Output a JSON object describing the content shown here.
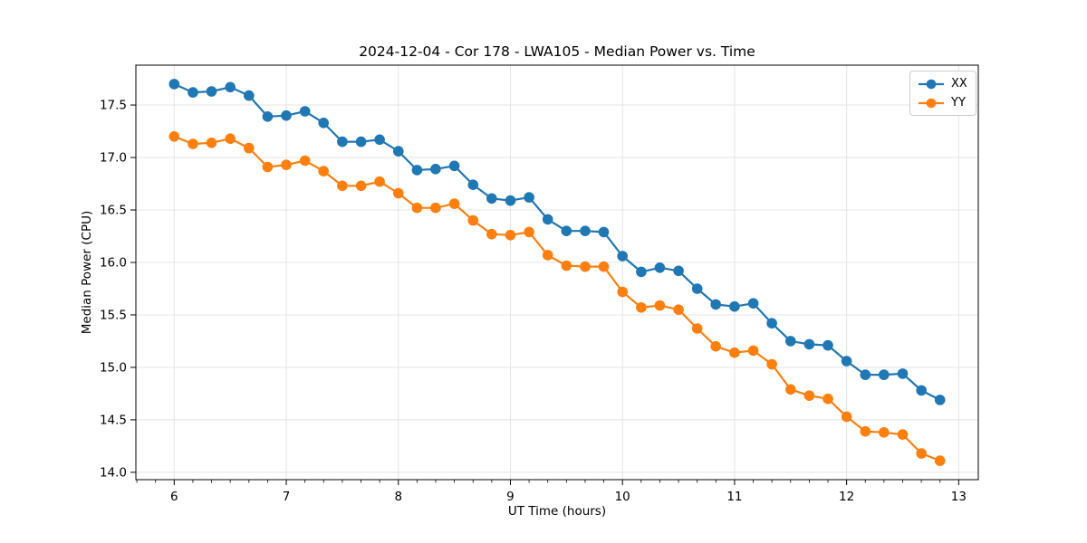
{
  "chart_data": {
    "type": "line",
    "title": "2024-12-04 - Cor 178 - LWA105 - Median Power vs. Time",
    "xlabel": "UT Time (hours)",
    "ylabel": "Median Power (CPU)",
    "x": [
      6.0,
      6.167,
      6.333,
      6.5,
      6.667,
      6.833,
      7.0,
      7.167,
      7.333,
      7.5,
      7.667,
      7.833,
      8.0,
      8.167,
      8.333,
      8.5,
      8.667,
      8.833,
      9.0,
      9.167,
      9.333,
      9.5,
      9.667,
      9.833,
      10.0,
      10.167,
      10.333,
      10.5,
      10.667,
      10.833,
      11.0,
      11.167,
      11.333,
      11.5,
      11.667,
      11.833,
      12.0,
      12.167,
      12.333,
      12.5,
      12.667,
      12.833
    ],
    "series": [
      {
        "name": "XX",
        "color": "#1f77b4",
        "values": [
          17.7,
          17.62,
          17.63,
          17.67,
          17.59,
          17.39,
          17.4,
          17.44,
          17.33,
          17.15,
          17.15,
          17.17,
          17.06,
          16.88,
          16.89,
          16.92,
          16.74,
          16.61,
          16.59,
          16.62,
          16.41,
          16.3,
          16.3,
          16.29,
          16.06,
          15.91,
          15.95,
          15.92,
          15.75,
          15.6,
          15.58,
          15.61,
          15.42,
          15.25,
          15.22,
          15.21,
          15.06,
          14.93,
          14.93,
          14.94,
          14.78,
          14.69
        ]
      },
      {
        "name": "YY",
        "color": "#ff7f0e",
        "values": [
          17.2,
          17.13,
          17.14,
          17.18,
          17.09,
          16.91,
          16.93,
          16.97,
          16.87,
          16.73,
          16.73,
          16.77,
          16.66,
          16.52,
          16.52,
          16.56,
          16.4,
          16.27,
          16.26,
          16.29,
          16.07,
          15.97,
          15.96,
          15.96,
          15.72,
          15.57,
          15.59,
          15.55,
          15.37,
          15.2,
          15.14,
          15.16,
          15.03,
          14.79,
          14.73,
          14.7,
          14.53,
          14.39,
          14.38,
          14.36,
          14.18,
          14.11
        ]
      }
    ],
    "xlim": [
      5.658,
      13.175
    ],
    "ylim": [
      13.93,
      17.88
    ],
    "xticks": [
      6,
      7,
      8,
      9,
      10,
      11,
      12,
      13
    ],
    "yticks": [
      14.0,
      14.5,
      15.0,
      15.5,
      16.0,
      16.5,
      17.0,
      17.5
    ],
    "x_minor_step": 0.1667,
    "grid": true,
    "legend": {
      "position": "upper right",
      "entries": [
        "XX",
        "YY"
      ]
    }
  }
}
